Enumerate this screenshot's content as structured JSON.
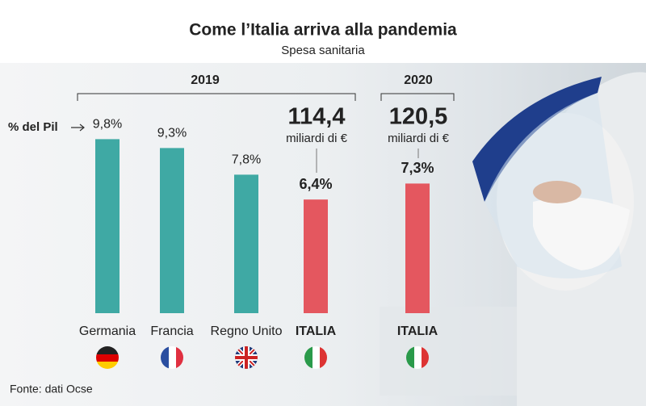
{
  "chart_data": {
    "type": "bar",
    "title": "Come l’Italia arriva alla pandemia",
    "subtitle": "Spesa sanitaria",
    "value_note": "% del Pil",
    "categories": [
      "Germania",
      "Francia",
      "Regno Unito",
      "ITALIA",
      "ITALIA"
    ],
    "values": [
      9.8,
      9.3,
      7.8,
      6.4,
      7.3
    ],
    "value_labels": [
      "9,8%",
      "9,3%",
      "7,8%",
      "6,4%",
      "7,3%"
    ],
    "colors": [
      "#3fa9a4",
      "#3fa9a4",
      "#3fa9a4",
      "#e4575f",
      "#e4575f"
    ],
    "groups": [
      "2019",
      "2020"
    ],
    "annotations": [
      {
        "amount": "114,4",
        "unit": "miliardi di €"
      },
      {
        "amount": "120,5",
        "unit": "miliardi di €"
      }
    ],
    "source": "Fonte: dati Ocse"
  }
}
